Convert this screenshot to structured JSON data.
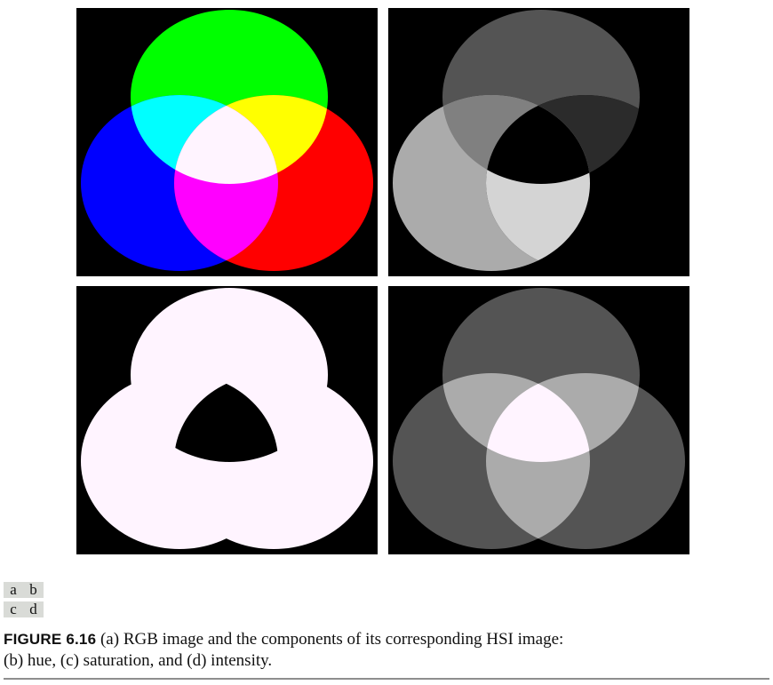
{
  "panel_labels": {
    "row1": [
      "a",
      "b"
    ],
    "row2": [
      "c",
      "d"
    ]
  },
  "caption": {
    "label": "FIGURE 6.16",
    "text_line1": " (a) RGB image and the components of its corresponding HSI image:",
    "text_line2": "(b) hue, (c) saturation, and (d) intensity."
  },
  "colors": {
    "background": "#000000",
    "red": "#ff0000",
    "green": "#00ff00",
    "blue": "#0000ff",
    "yellow": "#ffff00",
    "cyan": "#00ffff",
    "magenta": "#ff00ff",
    "white": "#fff4ff"
  },
  "hue_levels": {
    "green_only": 0.33,
    "blue_only": 0.67,
    "red_only": 0.0,
    "yellow": 0.17,
    "cyan": 0.5,
    "magenta": 0.83,
    "white": 0.0
  },
  "saturation_levels": {
    "colored_regions": 1.0,
    "white_center": 0.0
  },
  "intensity_levels": {
    "single_primary": 0.33,
    "two_overlap": 0.67,
    "three_overlap": 1.0
  }
}
